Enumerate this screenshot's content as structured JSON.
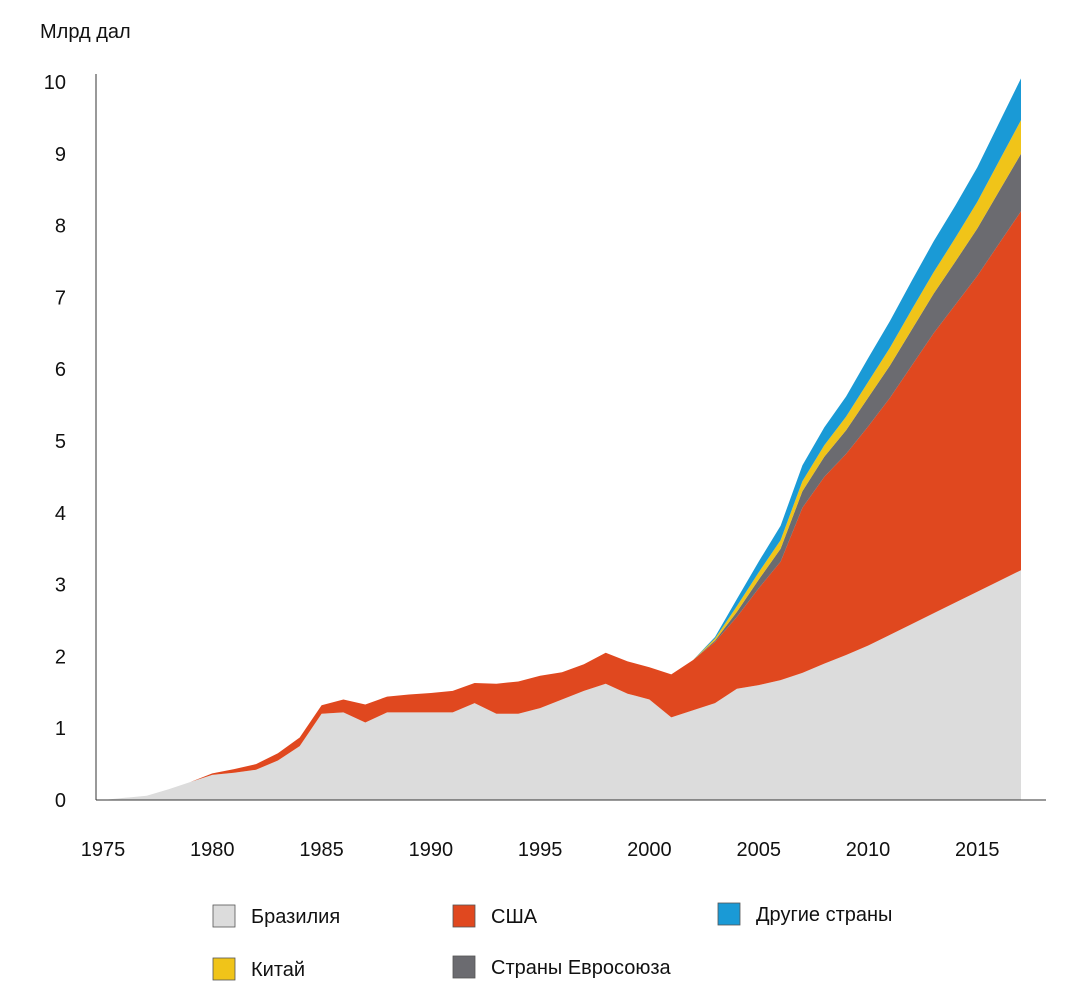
{
  "chart_data": {
    "type": "area",
    "stacked": true,
    "ylabel": "Млрд дал",
    "xlabel": "",
    "title": "",
    "xlim": [
      1975,
      2017
    ],
    "ylim": [
      0,
      10
    ],
    "xticks": [
      1975,
      1980,
      1985,
      1990,
      1995,
      2000,
      2005,
      2010,
      2015
    ],
    "yticks": [
      0,
      1,
      2,
      3,
      4,
      5,
      6,
      7,
      8,
      9,
      10
    ],
    "grid": false,
    "legend_position": "bottom",
    "colors": {
      "brazil": "#dcdcdc",
      "usa": "#e0481f",
      "eu": "#6b6b70",
      "china": "#f0c419",
      "other": "#1a9ad6"
    },
    "x": [
      1975,
      1976,
      1977,
      1978,
      1979,
      1980,
      1981,
      1982,
      1983,
      1984,
      1985,
      1986,
      1987,
      1988,
      1989,
      1990,
      1991,
      1992,
      1993,
      1994,
      1995,
      1996,
      1997,
      1998,
      1999,
      2000,
      2001,
      2002,
      2003,
      2004,
      2005,
      2006,
      2007,
      2008,
      2009,
      2010,
      2011,
      2012,
      2013,
      2014,
      2015,
      2016,
      2017
    ],
    "series": [
      {
        "key": "brazil",
        "name": "Бразилия",
        "values": [
          0,
          0.03,
          0.06,
          0.15,
          0.25,
          0.35,
          0.38,
          0.42,
          0.55,
          0.75,
          1.2,
          1.22,
          1.08,
          1.22,
          1.22,
          1.22,
          1.22,
          1.35,
          1.2,
          1.2,
          1.28,
          1.4,
          1.52,
          1.62,
          1.48,
          1.4,
          1.15,
          1.25,
          1.35,
          1.55,
          1.6,
          1.67,
          1.77,
          1.9,
          2.02,
          2.15,
          2.3,
          2.45,
          2.6,
          2.75,
          2.9,
          3.05,
          3.2
        ]
      },
      {
        "key": "usa",
        "name": "США",
        "values": [
          0,
          0,
          0,
          0,
          0,
          0.02,
          0.05,
          0.08,
          0.1,
          0.12,
          0.12,
          0.18,
          0.25,
          0.22,
          0.25,
          0.27,
          0.3,
          0.28,
          0.42,
          0.45,
          0.45,
          0.38,
          0.37,
          0.43,
          0.45,
          0.45,
          0.6,
          0.7,
          0.85,
          1.0,
          1.35,
          1.65,
          2.3,
          2.6,
          2.8,
          3.05,
          3.3,
          3.6,
          3.9,
          4.15,
          4.4,
          4.7,
          5.0
        ]
      },
      {
        "key": "eu",
        "name": "Страны Евросоюза",
        "values": [
          0,
          0,
          0,
          0,
          0,
          0,
          0,
          0,
          0,
          0,
          0,
          0,
          0,
          0,
          0,
          0,
          0,
          0,
          0,
          0,
          0,
          0,
          0,
          0,
          0,
          0,
          0,
          0,
          0.02,
          0.07,
          0.12,
          0.18,
          0.23,
          0.28,
          0.33,
          0.4,
          0.45,
          0.5,
          0.55,
          0.6,
          0.66,
          0.73,
          0.8
        ]
      },
      {
        "key": "china",
        "name": "Китай",
        "values": [
          0,
          0,
          0,
          0,
          0,
          0,
          0,
          0,
          0,
          0,
          0,
          0,
          0,
          0,
          0,
          0,
          0,
          0,
          0,
          0,
          0,
          0,
          0,
          0,
          0,
          0,
          0,
          0,
          0.03,
          0.08,
          0.1,
          0.12,
          0.14,
          0.16,
          0.19,
          0.22,
          0.25,
          0.28,
          0.3,
          0.33,
          0.37,
          0.42,
          0.47
        ]
      },
      {
        "key": "other",
        "name": "Другие страны",
        "values": [
          0,
          0,
          0,
          0,
          0,
          0,
          0,
          0,
          0,
          0,
          0,
          0,
          0,
          0,
          0,
          0,
          0,
          0,
          0,
          0,
          0,
          0,
          0,
          0,
          0,
          0,
          0,
          0,
          0.02,
          0.1,
          0.15,
          0.2,
          0.22,
          0.25,
          0.28,
          0.33,
          0.37,
          0.4,
          0.43,
          0.45,
          0.48,
          0.53,
          0.58
        ]
      }
    ],
    "legend": [
      {
        "key": "brazil",
        "label": "Бразилия"
      },
      {
        "key": "usa",
        "label": "США"
      },
      {
        "key": "other",
        "label": "Другие страны"
      },
      {
        "key": "china",
        "label": "Китай"
      },
      {
        "key": "eu",
        "label": "Страны Евросоюза"
      }
    ]
  }
}
